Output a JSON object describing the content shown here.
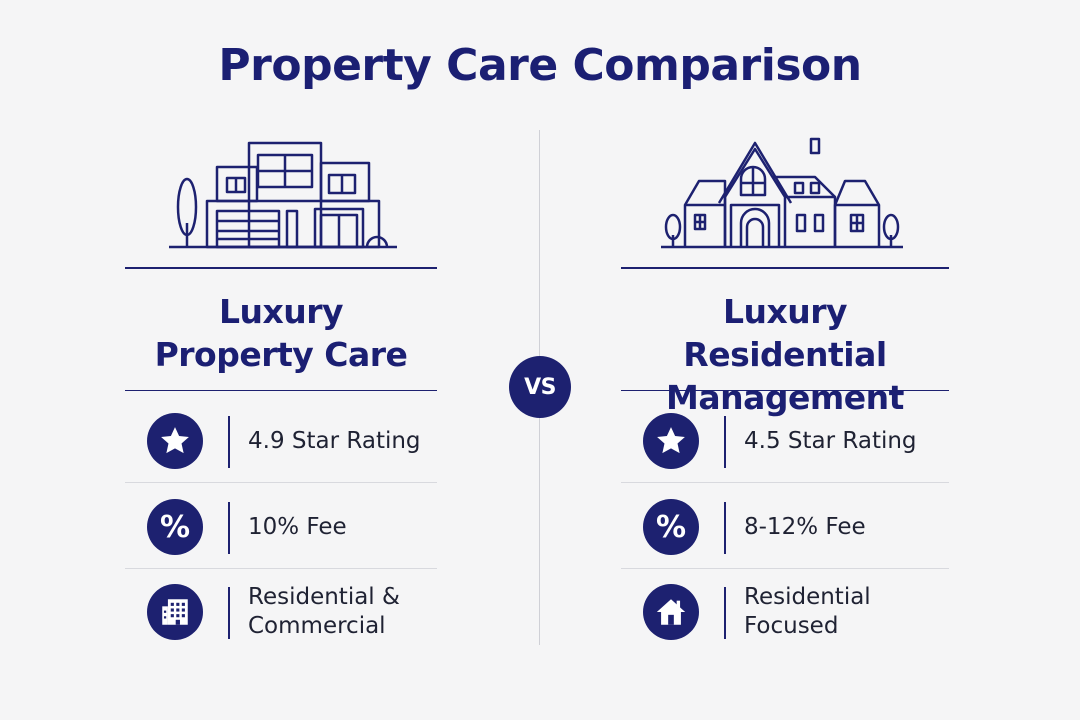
{
  "title": "Property Care Comparison",
  "vs_label": "VS",
  "colors": {
    "primary": "#1d2170",
    "background": "#f5f5f6",
    "text": "#1f2233"
  },
  "left": {
    "illustration": "modern-house-icon",
    "name_line1": "Luxury",
    "name_line2": "Property Care",
    "features": [
      {
        "icon": "star-icon",
        "text": "4.9 Star Rating"
      },
      {
        "icon": "percent-icon",
        "symbol": "%",
        "text": "10% Fee"
      },
      {
        "icon": "building-icon",
        "text_line1": "Residential &",
        "text_line2": "Commercial"
      }
    ]
  },
  "right": {
    "illustration": "mansion-icon",
    "name_line1": "Luxury Residential",
    "name_line2": "Management",
    "features": [
      {
        "icon": "star-icon",
        "text": "4.5 Star Rating"
      },
      {
        "icon": "percent-icon",
        "symbol": "%",
        "text": "8-12% Fee"
      },
      {
        "icon": "house-icon",
        "text_line1": "Residential",
        "text_line2": "Focused"
      }
    ]
  }
}
